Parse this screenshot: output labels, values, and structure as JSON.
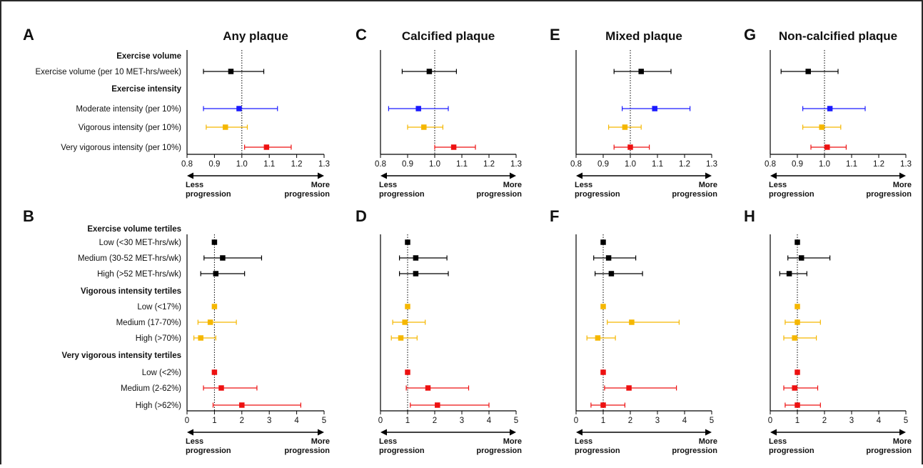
{
  "figure": {
    "colors": {
      "black": "#000000",
      "blue": "#1a1aff",
      "yellow": "#f5b700",
      "red": "#ee1111"
    },
    "direction_labels": {
      "less": [
        "Less",
        "progression"
      ],
      "more": [
        "More",
        "progression"
      ]
    }
  },
  "chart_data": [
    {
      "type": "forest",
      "panel": "A",
      "title": "Any plaque",
      "xlim": [
        0.8,
        1.3
      ],
      "xticks": [
        "0.8",
        "0.9",
        "1.0",
        "1.1",
        "1.2",
        "1.3"
      ],
      "reference_line": 1.0,
      "row_labels": [
        {
          "text": "Exercise volume",
          "bold": true
        },
        {
          "text": "Exercise volume (per 10 MET-hrs/week)",
          "bold": false
        },
        {
          "text": "Exercise intensity",
          "bold": true
        },
        {
          "text": "Moderate intensity (per 10%)",
          "bold": false
        },
        {
          "text": "Vigorous intensity (per 10%)",
          "bold": false
        },
        {
          "text": "Very vigorous intensity (per 10%)",
          "bold": false
        }
      ],
      "points": [
        {
          "row": 1,
          "est": 0.96,
          "lo": 0.86,
          "hi": 1.08,
          "color": "black"
        },
        {
          "row": 3,
          "est": 0.99,
          "lo": 0.86,
          "hi": 1.13,
          "color": "blue"
        },
        {
          "row": 4,
          "est": 0.94,
          "lo": 0.87,
          "hi": 1.02,
          "color": "yellow"
        },
        {
          "row": 5,
          "est": 1.09,
          "lo": 1.01,
          "hi": 1.18,
          "color": "red"
        }
      ]
    },
    {
      "type": "forest",
      "panel": "C",
      "title": "Calcified plaque",
      "xlim": [
        0.8,
        1.3
      ],
      "xticks": [
        "0.8",
        "0.9",
        "1.0",
        "1.1",
        "1.2",
        "1.3"
      ],
      "reference_line": 1.0,
      "row_labels": [],
      "points": [
        {
          "row": 1,
          "est": 0.98,
          "lo": 0.88,
          "hi": 1.08,
          "color": "black"
        },
        {
          "row": 3,
          "est": 0.94,
          "lo": 0.83,
          "hi": 1.05,
          "color": "blue"
        },
        {
          "row": 4,
          "est": 0.96,
          "lo": 0.9,
          "hi": 1.03,
          "color": "yellow"
        },
        {
          "row": 5,
          "est": 1.07,
          "lo": 1.0,
          "hi": 1.15,
          "color": "red"
        }
      ]
    },
    {
      "type": "forest",
      "panel": "E",
      "title": "Mixed plaque",
      "xlim": [
        0.8,
        1.3
      ],
      "xticks": [
        "0.8",
        "0.9",
        "1.0",
        "1.1",
        "1.2",
        "1.3"
      ],
      "reference_line": 1.0,
      "row_labels": [],
      "points": [
        {
          "row": 1,
          "est": 1.04,
          "lo": 0.94,
          "hi": 1.15,
          "color": "black"
        },
        {
          "row": 3,
          "est": 1.09,
          "lo": 0.97,
          "hi": 1.22,
          "color": "blue"
        },
        {
          "row": 4,
          "est": 0.98,
          "lo": 0.92,
          "hi": 1.04,
          "color": "yellow"
        },
        {
          "row": 5,
          "est": 1.0,
          "lo": 0.94,
          "hi": 1.07,
          "color": "red"
        }
      ]
    },
    {
      "type": "forest",
      "panel": "G",
      "title": "Non-calcified plaque",
      "xlim": [
        0.8,
        1.3
      ],
      "xticks": [
        "0.8",
        "0.9",
        "1.0",
        "1.1",
        "1.2",
        "1.3"
      ],
      "reference_line": 1.0,
      "row_labels": [],
      "points": [
        {
          "row": 1,
          "est": 0.94,
          "lo": 0.84,
          "hi": 1.05,
          "color": "black"
        },
        {
          "row": 3,
          "est": 1.02,
          "lo": 0.92,
          "hi": 1.15,
          "color": "blue"
        },
        {
          "row": 4,
          "est": 0.99,
          "lo": 0.92,
          "hi": 1.06,
          "color": "yellow"
        },
        {
          "row": 5,
          "est": 1.01,
          "lo": 0.95,
          "hi": 1.08,
          "color": "red"
        }
      ]
    },
    {
      "type": "forest",
      "panel": "B",
      "title": "",
      "xlim": [
        0,
        5
      ],
      "xticks": [
        "0",
        "1",
        "2",
        "3",
        "4",
        "5"
      ],
      "reference_line": 1.0,
      "row_labels": [
        {
          "text": "Exercise volume tertiles",
          "bold": true
        },
        {
          "text": "Low (<30 MET-hrs/wk)",
          "bold": false
        },
        {
          "text": "Medium (30-52 MET-hrs/wk)",
          "bold": false
        },
        {
          "text": "High (>52 MET-hrs/wk)",
          "bold": false
        },
        {
          "text": "Vigorous intensity tertiles",
          "bold": true
        },
        {
          "text": "Low (<17%)",
          "bold": false
        },
        {
          "text": "Medium (17-70%)",
          "bold": false
        },
        {
          "text": "High (>70%)",
          "bold": false
        },
        {
          "text": "Very vigorous intensity tertiles",
          "bold": true
        },
        {
          "text": "Low (<2%)",
          "bold": false
        },
        {
          "text": "Medium (2-62%)",
          "bold": false
        },
        {
          "text": "High (>62%)",
          "bold": false
        }
      ],
      "points": [
        {
          "row": 1,
          "est": 1.0,
          "lo": 1.0,
          "hi": 1.0,
          "color": "black"
        },
        {
          "row": 2,
          "est": 1.3,
          "lo": 0.62,
          "hi": 2.72,
          "color": "black"
        },
        {
          "row": 3,
          "est": 1.05,
          "lo": 0.5,
          "hi": 2.1,
          "color": "black"
        },
        {
          "row": 5,
          "est": 1.0,
          "lo": 1.0,
          "hi": 1.0,
          "color": "yellow"
        },
        {
          "row": 6,
          "est": 0.85,
          "lo": 0.4,
          "hi": 1.8,
          "color": "yellow"
        },
        {
          "row": 7,
          "est": 0.5,
          "lo": 0.25,
          "hi": 1.05,
          "color": "yellow"
        },
        {
          "row": 9,
          "est": 1.0,
          "lo": 1.0,
          "hi": 1.0,
          "color": "red"
        },
        {
          "row": 10,
          "est": 1.25,
          "lo": 0.6,
          "hi": 2.55,
          "color": "red"
        },
        {
          "row": 11,
          "est": 2.0,
          "lo": 0.95,
          "hi": 4.15,
          "color": "red"
        }
      ]
    },
    {
      "type": "forest",
      "panel": "D",
      "title": "",
      "xlim": [
        0,
        5
      ],
      "xticks": [
        "0",
        "1",
        "2",
        "3",
        "4",
        "5"
      ],
      "reference_line": 1.0,
      "row_labels": [],
      "points": [
        {
          "row": 1,
          "est": 1.0,
          "lo": 1.0,
          "hi": 1.0,
          "color": "black"
        },
        {
          "row": 2,
          "est": 1.3,
          "lo": 0.7,
          "hi": 2.45,
          "color": "black"
        },
        {
          "row": 3,
          "est": 1.3,
          "lo": 0.7,
          "hi": 2.5,
          "color": "black"
        },
        {
          "row": 5,
          "est": 1.0,
          "lo": 1.0,
          "hi": 1.0,
          "color": "yellow"
        },
        {
          "row": 6,
          "est": 0.9,
          "lo": 0.45,
          "hi": 1.65,
          "color": "yellow"
        },
        {
          "row": 7,
          "est": 0.75,
          "lo": 0.4,
          "hi": 1.35,
          "color": "yellow"
        },
        {
          "row": 9,
          "est": 1.0,
          "lo": 1.0,
          "hi": 1.0,
          "color": "red"
        },
        {
          "row": 10,
          "est": 1.75,
          "lo": 0.95,
          "hi": 3.25,
          "color": "red"
        },
        {
          "row": 11,
          "est": 2.1,
          "lo": 1.1,
          "hi": 4.0,
          "color": "red"
        }
      ]
    },
    {
      "type": "forest",
      "panel": "F",
      "title": "",
      "xlim": [
        0,
        5
      ],
      "xticks": [
        "0",
        "1",
        "2",
        "3",
        "4",
        "5"
      ],
      "reference_line": 1.0,
      "row_labels": [],
      "points": [
        {
          "row": 1,
          "est": 1.0,
          "lo": 1.0,
          "hi": 1.0,
          "color": "black"
        },
        {
          "row": 2,
          "est": 1.2,
          "lo": 0.65,
          "hi": 2.2,
          "color": "black"
        },
        {
          "row": 3,
          "est": 1.3,
          "lo": 0.7,
          "hi": 2.45,
          "color": "black"
        },
        {
          "row": 5,
          "est": 1.0,
          "lo": 1.0,
          "hi": 1.0,
          "color": "yellow"
        },
        {
          "row": 6,
          "est": 2.05,
          "lo": 1.15,
          "hi": 3.8,
          "color": "yellow"
        },
        {
          "row": 7,
          "est": 0.8,
          "lo": 0.4,
          "hi": 1.45,
          "color": "yellow"
        },
        {
          "row": 9,
          "est": 1.0,
          "lo": 1.0,
          "hi": 1.0,
          "color": "red"
        },
        {
          "row": 10,
          "est": 1.95,
          "lo": 1.05,
          "hi": 3.7,
          "color": "red"
        },
        {
          "row": 11,
          "est": 1.0,
          "lo": 0.55,
          "hi": 1.8,
          "color": "red"
        }
      ]
    },
    {
      "type": "forest",
      "panel": "H",
      "title": "",
      "xlim": [
        0,
        5
      ],
      "xticks": [
        "0",
        "1",
        "2",
        "3",
        "4",
        "5"
      ],
      "reference_line": 1.0,
      "row_labels": [],
      "points": [
        {
          "row": 1,
          "est": 1.0,
          "lo": 1.0,
          "hi": 1.0,
          "color": "black"
        },
        {
          "row": 2,
          "est": 1.15,
          "lo": 0.65,
          "hi": 2.2,
          "color": "black"
        },
        {
          "row": 3,
          "est": 0.7,
          "lo": 0.35,
          "hi": 1.35,
          "color": "black"
        },
        {
          "row": 5,
          "est": 1.0,
          "lo": 1.0,
          "hi": 1.0,
          "color": "yellow"
        },
        {
          "row": 6,
          "est": 1.0,
          "lo": 0.55,
          "hi": 1.85,
          "color": "yellow"
        },
        {
          "row": 7,
          "est": 0.9,
          "lo": 0.5,
          "hi": 1.7,
          "color": "yellow"
        },
        {
          "row": 9,
          "est": 1.0,
          "lo": 1.0,
          "hi": 1.0,
          "color": "red"
        },
        {
          "row": 10,
          "est": 0.9,
          "lo": 0.5,
          "hi": 1.75,
          "color": "red"
        },
        {
          "row": 11,
          "est": 1.0,
          "lo": 0.55,
          "hi": 1.85,
          "color": "red"
        }
      ]
    }
  ]
}
